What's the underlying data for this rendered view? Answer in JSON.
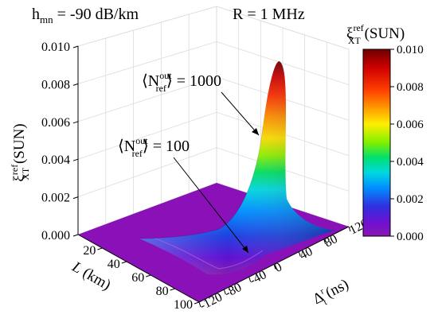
{
  "chart_data": {
    "type": "surface",
    "title_parts": {
      "h_main": "h",
      "h_sub": "mn",
      "h_value": " = -90 dB/km",
      "rate": "R = 1 MHz"
    },
    "zlabel": {
      "main": "ξ",
      "sup": "ref",
      "sub": "XT",
      "unit": " (SUN)"
    },
    "xlabel": {
      "main": "L",
      "unit": " (km)"
    },
    "ylabel": {
      "main": "Δ",
      "sup": "r",
      "sub": "t",
      "unit": " (ns)"
    },
    "z_ticks": [
      "0.000",
      "0.002",
      "0.004",
      "0.006",
      "0.008",
      "0.010"
    ],
    "zlim": [
      0,
      0.01
    ],
    "x_ticks": [
      "20",
      "40",
      "60",
      "80",
      "100"
    ],
    "xlim": [
      0,
      100
    ],
    "y_ticks": [
      "-120",
      "-80",
      "-40",
      "0",
      "40",
      "80",
      "120"
    ],
    "ylim": [
      -120,
      120
    ],
    "peak": {
      "L": 0,
      "delta": 0,
      "z": 0.0102
    },
    "annotations": [
      {
        "main": "⟨N",
        "sup": "out",
        "sub": "ref",
        "close": "⟩ = 1000"
      },
      {
        "main": "⟨N",
        "sup": "out",
        "sub": "ref",
        "close": "⟩ = 100"
      }
    ],
    "colorbar": {
      "title_main": "ξ",
      "title_sup": "ref",
      "title_sub": "XT",
      "title_unit": " (SUN)",
      "ticks": [
        "0.010",
        "0.008",
        "0.006",
        "0.004",
        "0.002",
        "0.000"
      ],
      "colors": [
        "#7a0000",
        "#d80000",
        "#ff4000",
        "#ff9000",
        "#ffe000",
        "#a8f000",
        "#00e040",
        "#00d0d0",
        "#0090ff",
        "#2040e0",
        "#6010d0",
        "#8010c0",
        "#8020a0"
      ]
    },
    "grid": true
  }
}
